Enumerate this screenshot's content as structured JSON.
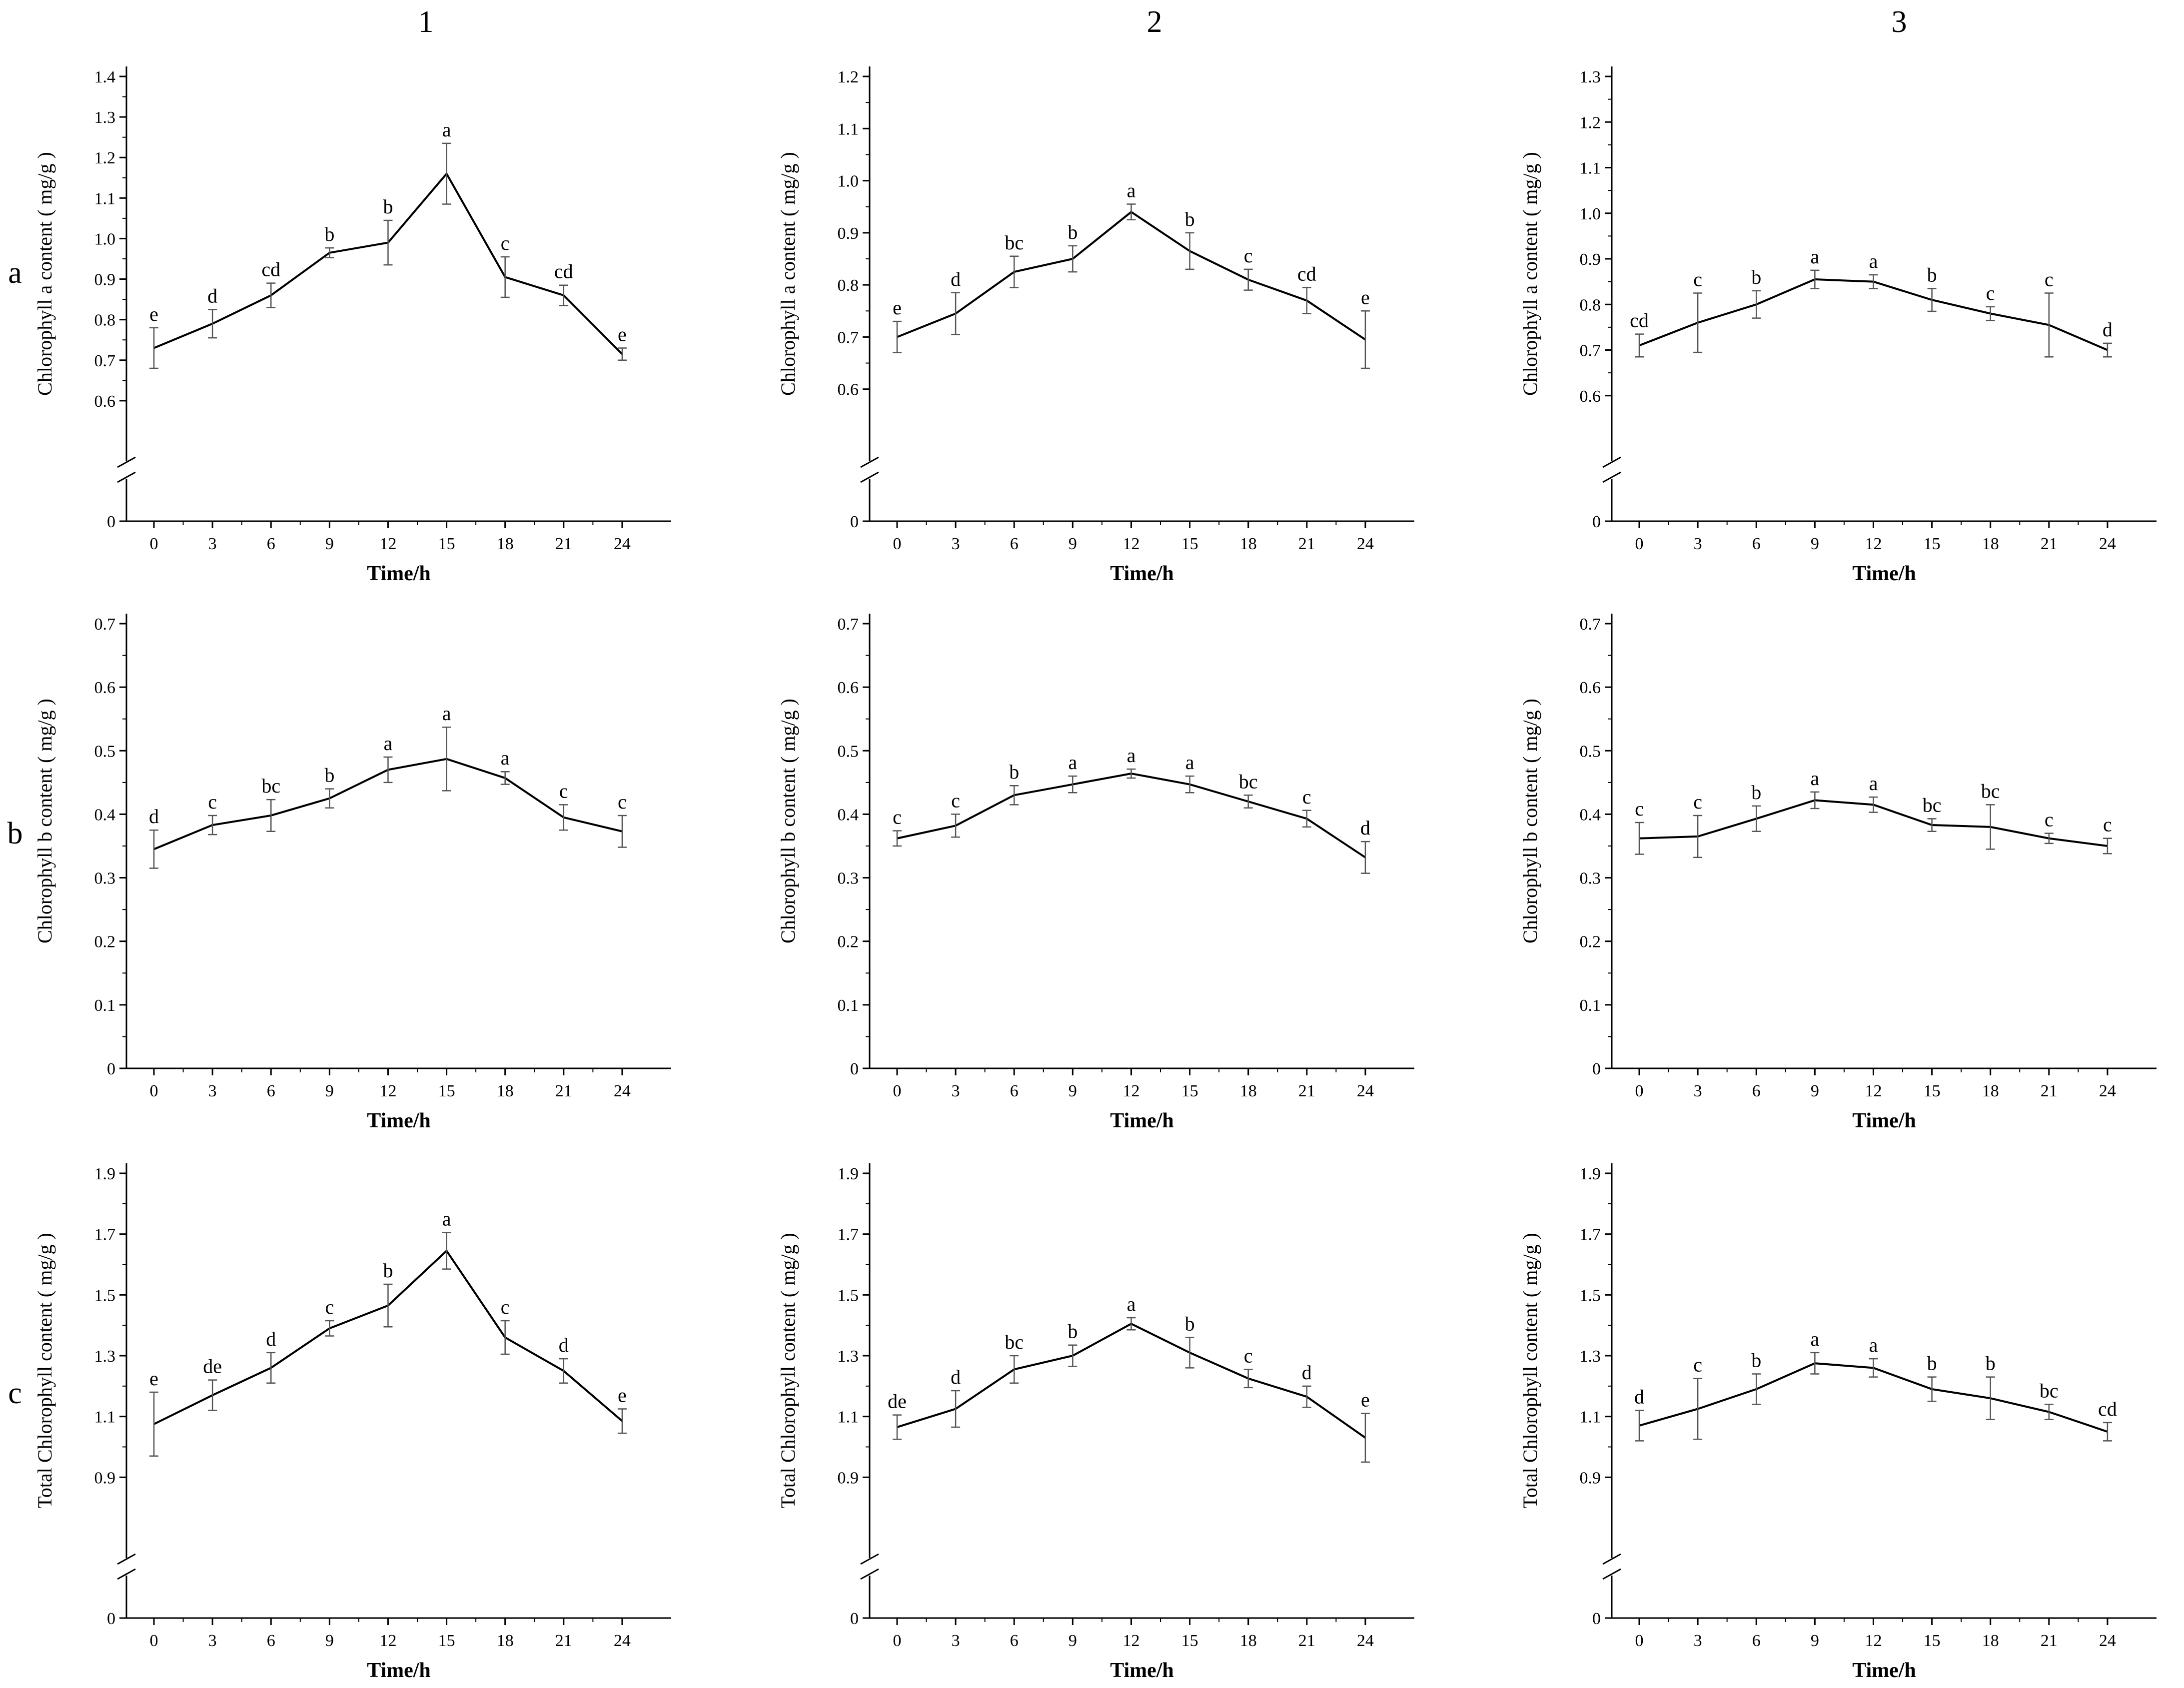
{
  "figure": {
    "column_headers": [
      "1",
      "2",
      "3"
    ],
    "row_headers": [
      "a",
      "b",
      "c"
    ]
  },
  "chart_data": [
    {
      "panel_row": "a",
      "panel_col": "1",
      "type": "line",
      "xlabel": "Time/h",
      "ylabel": "Chlorophyll a content ( mg/g )",
      "x": [
        0,
        3,
        6,
        9,
        12,
        15,
        18,
        21,
        24
      ],
      "xticks": [
        "0",
        "3",
        "6",
        "9",
        "12",
        "15",
        "18",
        "21",
        "24"
      ],
      "ylim": [
        0.5,
        1.4
      ],
      "yticks": [
        "0.6",
        "0.7",
        "0.8",
        "0.9",
        "1.0",
        "1.1",
        "1.2",
        "1.3",
        "1.4"
      ],
      "y_axis_break": true,
      "zero_label": "0",
      "values": [
        0.73,
        0.79,
        0.86,
        0.965,
        0.99,
        1.16,
        0.905,
        0.86,
        0.715
      ],
      "errors": [
        0.05,
        0.035,
        0.03,
        0.012,
        0.055,
        0.075,
        0.05,
        0.025,
        0.015
      ],
      "letters": [
        "e",
        "d",
        "cd",
        "b",
        "b",
        "a",
        "c",
        "cd",
        "e"
      ]
    },
    {
      "panel_row": "a",
      "panel_col": "2",
      "type": "line",
      "xlabel": "Time/h",
      "ylabel": "Chlorophyll a content ( mg/g )",
      "x": [
        0,
        3,
        6,
        9,
        12,
        15,
        18,
        21,
        24
      ],
      "xticks": [
        "0",
        "3",
        "6",
        "9",
        "12",
        "15",
        "18",
        "21",
        "24"
      ],
      "ylim": [
        0.5,
        1.2
      ],
      "yticks": [
        "0.6",
        "0.7",
        "0.8",
        "0.9",
        "1.0",
        "1.1",
        "1.2"
      ],
      "y_axis_break": true,
      "zero_label": "0",
      "values": [
        0.7,
        0.745,
        0.825,
        0.85,
        0.94,
        0.865,
        0.81,
        0.77,
        0.695
      ],
      "errors": [
        0.03,
        0.04,
        0.03,
        0.025,
        0.015,
        0.035,
        0.02,
        0.025,
        0.055
      ],
      "letters": [
        "e",
        "d",
        "bc",
        "b",
        "a",
        "b",
        "c",
        "cd",
        "e"
      ]
    },
    {
      "panel_row": "a",
      "panel_col": "3",
      "type": "line",
      "xlabel": "Time/h",
      "ylabel": "Chlorophyll a content ( mg/g )",
      "x": [
        0,
        3,
        6,
        9,
        12,
        15,
        18,
        21,
        24
      ],
      "xticks": [
        "0",
        "3",
        "6",
        "9",
        "12",
        "15",
        "18",
        "21",
        "24"
      ],
      "ylim": [
        0.5,
        1.3
      ],
      "yticks": [
        "0.6",
        "0.7",
        "0.8",
        "0.9",
        "1.0",
        "1.1",
        "1.2",
        "1.3"
      ],
      "y_axis_break": true,
      "zero_label": "0",
      "values": [
        0.71,
        0.76,
        0.8,
        0.855,
        0.85,
        0.81,
        0.78,
        0.755,
        0.7
      ],
      "errors": [
        0.025,
        0.065,
        0.03,
        0.02,
        0.015,
        0.025,
        0.015,
        0.07,
        0.015
      ],
      "letters": [
        "cd",
        "c",
        "b",
        "a",
        "a",
        "b",
        "c",
        "c",
        "d"
      ]
    },
    {
      "panel_row": "b",
      "panel_col": "1",
      "type": "line",
      "xlabel": "Time/h",
      "ylabel": "Chlorophyll b content ( mg/g )",
      "x": [
        0,
        3,
        6,
        9,
        12,
        15,
        18,
        21,
        24
      ],
      "xticks": [
        "0",
        "3",
        "6",
        "9",
        "12",
        "15",
        "18",
        "21",
        "24"
      ],
      "ylim": [
        0,
        0.7
      ],
      "yticks": [
        "0",
        "0.1",
        "0.2",
        "0.3",
        "0.4",
        "0.5",
        "0.6",
        "0.7"
      ],
      "y_axis_break": false,
      "values": [
        0.345,
        0.383,
        0.398,
        0.425,
        0.47,
        0.487,
        0.457,
        0.395,
        0.373
      ],
      "errors": [
        0.03,
        0.015,
        0.025,
        0.015,
        0.02,
        0.05,
        0.01,
        0.02,
        0.025
      ],
      "letters": [
        "d",
        "c",
        "bc",
        "b",
        "a",
        "a",
        "a",
        "c",
        "c"
      ]
    },
    {
      "panel_row": "b",
      "panel_col": "2",
      "type": "line",
      "xlabel": "Time/h",
      "ylabel": "Chlorophyll b content ( mg/g )",
      "x": [
        0,
        3,
        6,
        9,
        12,
        15,
        18,
        21,
        24
      ],
      "xticks": [
        "0",
        "3",
        "6",
        "9",
        "12",
        "15",
        "18",
        "21",
        "24"
      ],
      "ylim": [
        0,
        0.7
      ],
      "yticks": [
        "0",
        "0.1",
        "0.2",
        "0.3",
        "0.4",
        "0.5",
        "0.6",
        "0.7"
      ],
      "y_axis_break": false,
      "values": [
        0.362,
        0.382,
        0.43,
        0.447,
        0.464,
        0.447,
        0.42,
        0.393,
        0.332
      ],
      "errors": [
        0.012,
        0.018,
        0.015,
        0.013,
        0.007,
        0.013,
        0.01,
        0.013,
        0.025
      ],
      "letters": [
        "c",
        "c",
        "b",
        "a",
        "a",
        "a",
        "bc",
        "c",
        "d"
      ]
    },
    {
      "panel_row": "b",
      "panel_col": "3",
      "type": "line",
      "xlabel": "Time/h",
      "ylabel": "Chlorophyll b content ( mg/g )",
      "x": [
        0,
        3,
        6,
        9,
        12,
        15,
        18,
        21,
        24
      ],
      "xticks": [
        "0",
        "3",
        "6",
        "9",
        "12",
        "15",
        "18",
        "21",
        "24"
      ],
      "ylim": [
        0,
        0.7
      ],
      "yticks": [
        "0",
        "0.1",
        "0.2",
        "0.3",
        "0.4",
        "0.5",
        "0.6",
        "0.7"
      ],
      "y_axis_break": false,
      "values": [
        0.362,
        0.365,
        0.393,
        0.422,
        0.415,
        0.383,
        0.38,
        0.362,
        0.35
      ],
      "errors": [
        0.025,
        0.033,
        0.02,
        0.013,
        0.012,
        0.01,
        0.035,
        0.008,
        0.012
      ],
      "letters": [
        "c",
        "c",
        "b",
        "a",
        "a",
        "bc",
        "bc",
        "c",
        "c"
      ]
    },
    {
      "panel_row": "c",
      "panel_col": "1",
      "type": "line",
      "xlabel": "Time/h",
      "ylabel": "Total Chlorophyll content ( mg/g )",
      "x": [
        0,
        3,
        6,
        9,
        12,
        15,
        18,
        21,
        24
      ],
      "xticks": [
        "0",
        "3",
        "6",
        "9",
        "12",
        "15",
        "18",
        "21",
        "24"
      ],
      "ylim": [
        0.7,
        1.9
      ],
      "yticks": [
        "0.9",
        "1.1",
        "1.3",
        "1.5",
        "1.7",
        "1.9"
      ],
      "y_axis_break": true,
      "zero_label": "0",
      "values": [
        1.075,
        1.17,
        1.26,
        1.39,
        1.465,
        1.645,
        1.36,
        1.25,
        1.085
      ],
      "errors": [
        0.105,
        0.05,
        0.05,
        0.025,
        0.07,
        0.06,
        0.055,
        0.04,
        0.04
      ],
      "letters": [
        "e",
        "de",
        "d",
        "c",
        "b",
        "a",
        "c",
        "d",
        "e"
      ]
    },
    {
      "panel_row": "c",
      "panel_col": "2",
      "type": "line",
      "xlabel": "Time/h",
      "ylabel": "Total Chlorophyll content ( mg/g )",
      "x": [
        0,
        3,
        6,
        9,
        12,
        15,
        18,
        21,
        24
      ],
      "xticks": [
        "0",
        "3",
        "6",
        "9",
        "12",
        "15",
        "18",
        "21",
        "24"
      ],
      "ylim": [
        0.7,
        1.9
      ],
      "yticks": [
        "0.9",
        "1.1",
        "1.3",
        "1.5",
        "1.7",
        "1.9"
      ],
      "y_axis_break": true,
      "zero_label": "0",
      "values": [
        1.065,
        1.125,
        1.255,
        1.3,
        1.405,
        1.31,
        1.225,
        1.165,
        1.03
      ],
      "errors": [
        0.04,
        0.06,
        0.045,
        0.035,
        0.02,
        0.05,
        0.03,
        0.035,
        0.08
      ],
      "letters": [
        "de",
        "d",
        "bc",
        "b",
        "a",
        "b",
        "c",
        "d",
        "e"
      ]
    },
    {
      "panel_row": "c",
      "panel_col": "3",
      "type": "line",
      "xlabel": "Time/h",
      "ylabel": "Total Chlorophyll content ( mg/g )",
      "x": [
        0,
        3,
        6,
        9,
        12,
        15,
        18,
        21,
        24
      ],
      "xticks": [
        "0",
        "3",
        "6",
        "9",
        "12",
        "15",
        "18",
        "21",
        "24"
      ],
      "ylim": [
        0.7,
        1.9
      ],
      "yticks": [
        "0.9",
        "1.1",
        "1.3",
        "1.5",
        "1.7",
        "1.9"
      ],
      "y_axis_break": true,
      "zero_label": "0",
      "values": [
        1.07,
        1.125,
        1.19,
        1.275,
        1.26,
        1.19,
        1.16,
        1.115,
        1.05
      ],
      "errors": [
        0.05,
        0.1,
        0.05,
        0.035,
        0.03,
        0.04,
        0.07,
        0.025,
        0.03
      ],
      "letters": [
        "d",
        "c",
        "b",
        "a",
        "a",
        "b",
        "b",
        "bc",
        "cd"
      ]
    }
  ]
}
